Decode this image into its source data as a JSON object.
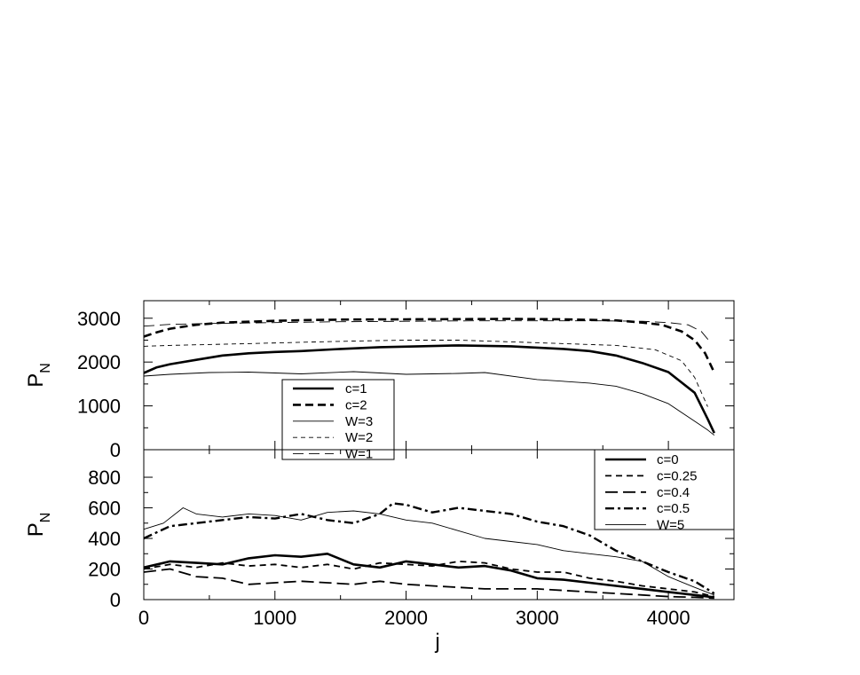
{
  "chart_data": [
    {
      "type": "line",
      "xlabel": "",
      "ylabel": "P_N",
      "ylabel_main": "P",
      "ylabel_sub": "N",
      "xlim": [
        0,
        4500
      ],
      "ylim": [
        0,
        3400
      ],
      "y_ticks": [
        0,
        1000,
        2000,
        3000
      ],
      "y_tick_labels": [
        "0",
        "1000",
        "2000",
        "3000"
      ],
      "grid": false,
      "legend_position": "center-left",
      "series": [
        {
          "name": "c=1",
          "style": "solid-thick",
          "x": [
            0,
            100,
            200,
            400,
            600,
            800,
            1000,
            1200,
            1500,
            1800,
            2100,
            2400,
            2600,
            2800,
            3000,
            3200,
            3400,
            3600,
            3800,
            4000,
            4200,
            4300,
            4350
          ],
          "y": [
            1750,
            1880,
            1950,
            2050,
            2150,
            2200,
            2230,
            2250,
            2300,
            2340,
            2360,
            2380,
            2370,
            2360,
            2330,
            2300,
            2250,
            2150,
            1980,
            1770,
            1300,
            700,
            380
          ]
        },
        {
          "name": "c=2",
          "style": "dashed-thick",
          "x": [
            0,
            100,
            200,
            400,
            600,
            800,
            1000,
            1300,
            1600,
            2000,
            2400,
            2800,
            3200,
            3600,
            3800,
            3950,
            4100,
            4200,
            4280,
            4340
          ],
          "y": [
            2580,
            2680,
            2760,
            2850,
            2900,
            2920,
            2940,
            2960,
            2970,
            2975,
            2980,
            2985,
            2975,
            2950,
            2900,
            2850,
            2700,
            2500,
            2200,
            1820
          ]
        },
        {
          "name": "W=3",
          "style": "solid-thin",
          "x": [
            0,
            200,
            500,
            800,
            1000,
            1200,
            1600,
            2000,
            2400,
            2600,
            3000,
            3400,
            3600,
            3800,
            4000,
            4200,
            4300,
            4350
          ],
          "y": [
            1680,
            1720,
            1760,
            1770,
            1750,
            1730,
            1780,
            1720,
            1740,
            1760,
            1600,
            1520,
            1450,
            1280,
            1050,
            650,
            450,
            330
          ]
        },
        {
          "name": "W=2",
          "style": "dashed-thin",
          "x": [
            0,
            200,
            500,
            800,
            1200,
            1600,
            2000,
            2400,
            2800,
            3200,
            3600,
            3900,
            4100,
            4200,
            4300
          ],
          "y": [
            2360,
            2380,
            2400,
            2420,
            2450,
            2480,
            2500,
            2500,
            2460,
            2420,
            2380,
            2280,
            2030,
            1650,
            980
          ]
        },
        {
          "name": "W=1",
          "style": "longdash-thin",
          "x": [
            0,
            200,
            500,
            1000,
            1500,
            2000,
            2500,
            3000,
            3500,
            3800,
            4000,
            4150,
            4250,
            4320
          ],
          "y": [
            2820,
            2860,
            2880,
            2900,
            2920,
            2930,
            2940,
            2940,
            2940,
            2930,
            2900,
            2850,
            2700,
            2450
          ]
        }
      ]
    },
    {
      "type": "line",
      "xlabel": "j",
      "ylabel": "P_N",
      "ylabel_main": "P",
      "ylabel_sub": "N",
      "xlim": [
        0,
        4500
      ],
      "ylim": [
        0,
        980
      ],
      "x_ticks": [
        0,
        1000,
        2000,
        3000,
        4000
      ],
      "x_tick_labels": [
        "0",
        "1000",
        "2000",
        "3000",
        "4000"
      ],
      "y_ticks": [
        0,
        200,
        400,
        600,
        800
      ],
      "y_tick_labels": [
        "0",
        "200",
        "400",
        "600",
        "800"
      ],
      "grid": false,
      "legend_position": "top-right",
      "series": [
        {
          "name": "c=0",
          "style": "solid-thick",
          "x": [
            0,
            200,
            400,
            600,
            800,
            1000,
            1200,
            1400,
            1600,
            1800,
            2000,
            2200,
            2400,
            2600,
            2800,
            3000,
            3200,
            3400,
            3600,
            3800,
            4000,
            4200,
            4350
          ],
          "y": [
            210,
            250,
            240,
            230,
            270,
            290,
            280,
            300,
            230,
            210,
            250,
            230,
            210,
            220,
            190,
            140,
            130,
            110,
            90,
            70,
            50,
            30,
            15
          ]
        },
        {
          "name": "c=0.25",
          "style": "dashed",
          "x": [
            0,
            200,
            400,
            600,
            800,
            1000,
            1200,
            1400,
            1600,
            1800,
            2000,
            2200,
            2400,
            2600,
            2800,
            3000,
            3200,
            3400,
            3600,
            3800,
            4000,
            4200,
            4350
          ],
          "y": [
            200,
            230,
            210,
            240,
            220,
            230,
            210,
            230,
            200,
            240,
            230,
            220,
            250,
            240,
            200,
            180,
            180,
            140,
            120,
            90,
            70,
            50,
            20
          ]
        },
        {
          "name": "c=0.4",
          "style": "longdash",
          "x": [
            0,
            200,
            400,
            600,
            800,
            1000,
            1200,
            1400,
            1600,
            1800,
            2000,
            2200,
            2400,
            2600,
            2800,
            3000,
            3200,
            3400,
            3600,
            3800,
            4000,
            4200,
            4350
          ],
          "y": [
            180,
            200,
            150,
            140,
            100,
            110,
            120,
            110,
            100,
            120,
            100,
            90,
            80,
            70,
            70,
            70,
            60,
            50,
            40,
            30,
            20,
            15,
            10
          ]
        },
        {
          "name": "c=0.5",
          "style": "dashdot-thick",
          "x": [
            0,
            200,
            400,
            600,
            800,
            1000,
            1200,
            1400,
            1600,
            1800,
            1900,
            2000,
            2200,
            2400,
            2600,
            2800,
            3000,
            3200,
            3400,
            3600,
            3800,
            4000,
            4200,
            4350
          ],
          "y": [
            400,
            480,
            500,
            520,
            540,
            530,
            560,
            520,
            500,
            560,
            630,
            620,
            570,
            600,
            580,
            560,
            510,
            480,
            420,
            320,
            250,
            180,
            120,
            40
          ]
        },
        {
          "name": "W=5",
          "style": "solid-thin",
          "x": [
            0,
            150,
            300,
            400,
            600,
            800,
            1000,
            1200,
            1400,
            1600,
            1800,
            2000,
            2200,
            2400,
            2600,
            2800,
            3000,
            3200,
            3400,
            3600,
            3800,
            4000,
            4200,
            4350
          ],
          "y": [
            460,
            500,
            600,
            560,
            540,
            560,
            550,
            520,
            570,
            580,
            560,
            520,
            500,
            450,
            400,
            380,
            360,
            320,
            300,
            280,
            250,
            150,
            80,
            30
          ]
        }
      ]
    }
  ],
  "figure": {
    "axis_color": "#000000",
    "line_color": "#000000",
    "background": "#ffffff"
  }
}
